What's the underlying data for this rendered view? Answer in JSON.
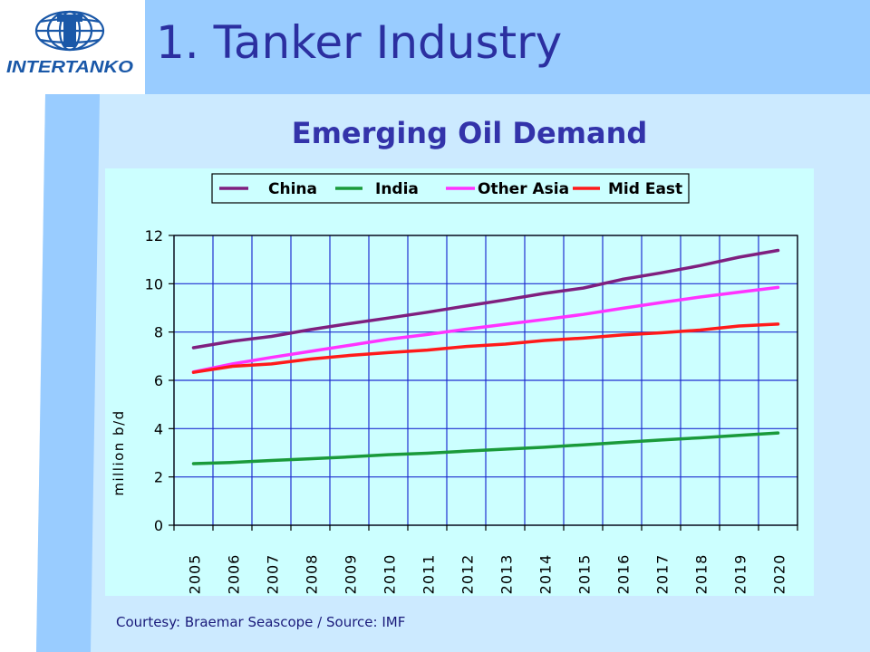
{
  "slide": {
    "title": "1. Tanker Industry",
    "subtitle": "Emerging Oil Demand",
    "credit": "Courtesy: Braemar Seascope / Source: IMF",
    "logo_text": "INTERTANKO"
  },
  "colors": {
    "title": "#2b2fa0",
    "band": "#99ccff",
    "background": "#cceaff",
    "plot_bg": "#ccffff"
  },
  "chart_data": {
    "type": "line",
    "title": "",
    "xlabel": "",
    "ylabel": "million b/d",
    "categories": [
      "2005",
      "2006",
      "2007",
      "2008",
      "2009",
      "2010",
      "2011",
      "2012",
      "2013",
      "2014",
      "2015",
      "2016",
      "2017",
      "2018",
      "2019",
      "2020"
    ],
    "ylim": [
      0,
      12
    ],
    "yticks": [
      0,
      2,
      4,
      6,
      8,
      10,
      12
    ],
    "grid": true,
    "legend_position": "top",
    "series": [
      {
        "name": "China",
        "color": "#7f1f7f",
        "values": [
          7.35,
          7.62,
          7.82,
          8.1,
          8.35,
          8.58,
          8.82,
          9.08,
          9.33,
          9.6,
          9.82,
          10.18,
          10.45,
          10.75,
          11.1,
          11.38
        ]
      },
      {
        "name": "India",
        "color": "#1a9a3a",
        "values": [
          2.55,
          2.6,
          2.68,
          2.75,
          2.83,
          2.92,
          2.98,
          3.07,
          3.15,
          3.23,
          3.33,
          3.43,
          3.53,
          3.62,
          3.72,
          3.82
        ]
      },
      {
        "name": "Other Asia",
        "color": "#ff33ff",
        "values": [
          6.35,
          6.68,
          6.95,
          7.2,
          7.45,
          7.7,
          7.9,
          8.12,
          8.32,
          8.52,
          8.73,
          8.98,
          9.22,
          9.45,
          9.65,
          9.85
        ]
      },
      {
        "name": "Mid East",
        "color": "#ff1a1a",
        "values": [
          6.33,
          6.58,
          6.68,
          6.88,
          7.03,
          7.15,
          7.25,
          7.4,
          7.5,
          7.65,
          7.75,
          7.88,
          7.97,
          8.08,
          8.25,
          8.33
        ]
      }
    ]
  }
}
